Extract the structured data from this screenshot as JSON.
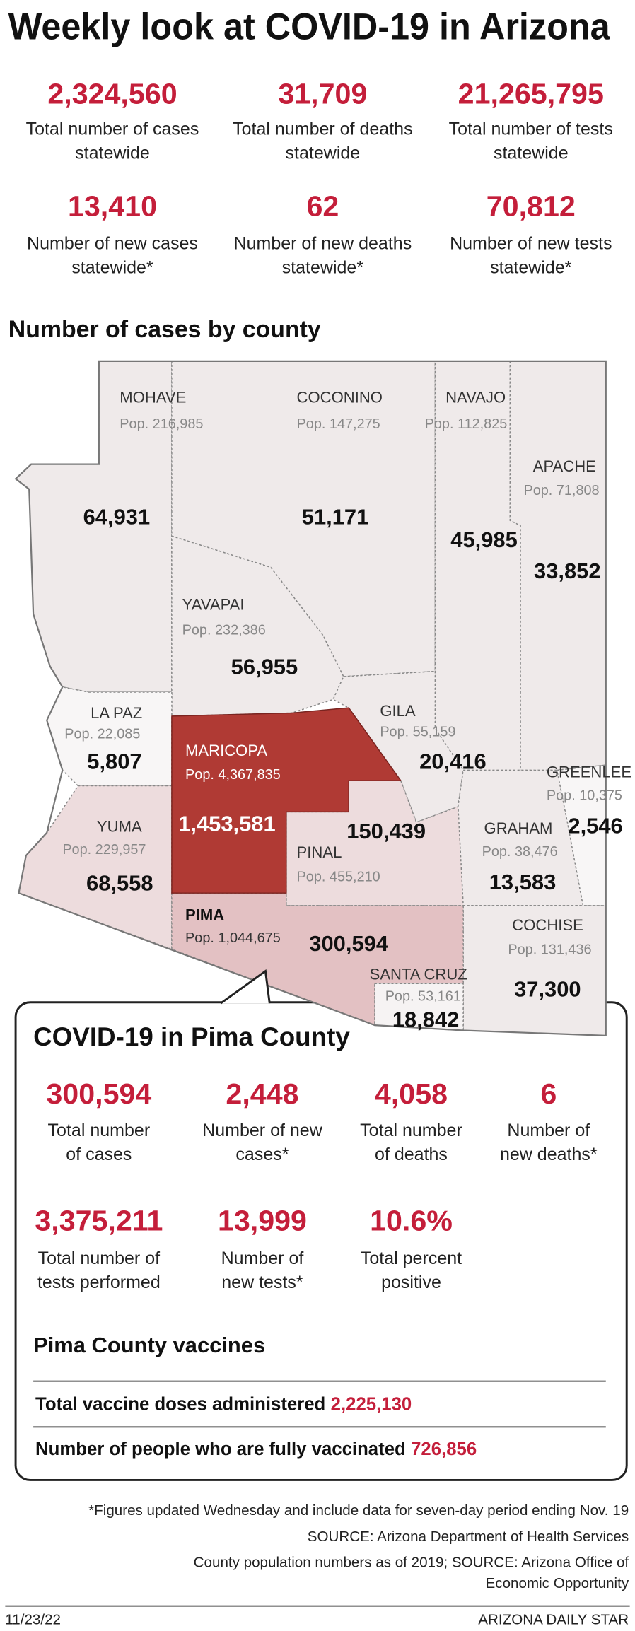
{
  "header": {
    "title": "Weekly look at COVID-19 in Arizona"
  },
  "statewide": [
    {
      "value": "2,324,560",
      "label": [
        "Total number of cases",
        "statewide"
      ]
    },
    {
      "value": "31,709",
      "label": [
        "Total number of deaths",
        "statewide"
      ]
    },
    {
      "value": "21,265,795",
      "label": [
        "Total number of tests",
        "statewide"
      ]
    },
    {
      "value": "13,410",
      "label": [
        "Number of new cases",
        "statewide*"
      ]
    },
    {
      "value": "62",
      "label": [
        "Number of new deaths",
        "statewide*"
      ]
    },
    {
      "value": "70,812",
      "label": [
        "Number of new tests",
        "statewide*"
      ]
    }
  ],
  "map": {
    "title": "Number of cases by county",
    "counties": [
      {
        "name": "MOHAVE",
        "population": "Pop. 216,985",
        "cases": "64,931"
      },
      {
        "name": "COCONINO",
        "population": "Pop. 147,275",
        "cases": "51,171"
      },
      {
        "name": "NAVAJO",
        "population": "Pop. 112,825",
        "cases": "45,985"
      },
      {
        "name": "APACHE",
        "population": "Pop. 71,808",
        "cases": "33,852"
      },
      {
        "name": "YAVAPAI",
        "population": "Pop. 232,386",
        "cases": "56,955"
      },
      {
        "name": "LA PAZ",
        "population": "Pop. 22,085",
        "cases": "5,807"
      },
      {
        "name": "MARICOPA",
        "population": "Pop. 4,367,835",
        "cases": "1,453,581"
      },
      {
        "name": "GILA",
        "population": "Pop. 55,159",
        "cases": "20,416"
      },
      {
        "name": "GREENLEE",
        "population": "Pop. 10,375",
        "cases": "2,546"
      },
      {
        "name": "YUMA",
        "population": "Pop. 229,957",
        "cases": "68,558"
      },
      {
        "name": "PINAL",
        "population": "Pop. 455,210",
        "cases": "150,439"
      },
      {
        "name": "GRAHAM",
        "population": "Pop. 38,476",
        "cases": "13,583"
      },
      {
        "name": "PIMA",
        "population": "Pop. 1,044,675",
        "cases": "300,594"
      },
      {
        "name": "COCHISE",
        "population": "Pop. 131,436",
        "cases": "37,300"
      },
      {
        "name": "SANTA CRUZ",
        "population": "Pop. 53,161",
        "cases": "18,842"
      }
    ]
  },
  "pima": {
    "title": "COVID-19 in Pima County",
    "stats": [
      {
        "value": "300,594",
        "label": [
          "Total number",
          "of cases"
        ]
      },
      {
        "value": "2,448",
        "label": [
          "Number of new",
          "cases*"
        ]
      },
      {
        "value": "4,058",
        "label": [
          "Total number",
          "of deaths"
        ]
      },
      {
        "value": "6",
        "label": [
          "Number of",
          "new deaths*"
        ]
      },
      {
        "value": "3,375,211",
        "label": [
          "Total number of",
          "tests performed"
        ]
      },
      {
        "value": "13,999",
        "label": [
          "Number of",
          "new tests*"
        ]
      },
      {
        "value": "10.6%",
        "label": [
          "Total percent",
          "positive"
        ]
      }
    ],
    "vaccines": {
      "title": "Pima County vaccines",
      "rows": [
        {
          "label": "Total vaccine doses administered",
          "value": "2,225,130"
        },
        {
          "label": "Number of people who are fully vaccinated",
          "value": "726,856"
        }
      ]
    }
  },
  "footer": {
    "notes": [
      [
        "*Figures updated Wednesday and include data for seven-day period ending Nov. 19"
      ],
      [
        "SOURCE: Arizona Department of Health Services"
      ],
      [
        "County population numbers as of 2019; SOURCE: Arizona Office of",
        "Economic Opportunity"
      ]
    ],
    "date": "11/23/22",
    "brand": "ARIZONA DAILY STAR"
  }
}
